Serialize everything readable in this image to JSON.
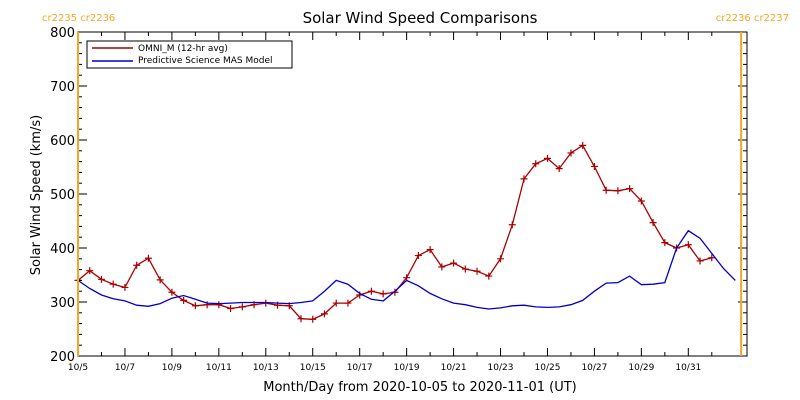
{
  "chart_data": {
    "type": "line",
    "title": "Solar Wind Speed Comparisons",
    "xlabel": "Month/Day from 2020-10-05 to 2020-11-01 (UT)",
    "ylabel": "Solar Wind Speed (km/s)",
    "ylim": [
      200,
      800
    ],
    "xlim": [
      "2020-10-05",
      "2020-11-02 12:00"
    ],
    "y_ticks": [
      "200",
      "300",
      "400",
      "500",
      "600",
      "700",
      "800"
    ],
    "x_ticks": [
      {
        "date": "2020-10-05",
        "label": "10/5"
      },
      {
        "date": "2020-10-07",
        "label": "10/7"
      },
      {
        "date": "2020-10-09",
        "label": "10/9"
      },
      {
        "date": "2020-10-11",
        "label": "10/11"
      },
      {
        "date": "2020-10-13",
        "label": "10/13"
      },
      {
        "date": "2020-10-15",
        "label": "10/15"
      },
      {
        "date": "2020-10-17",
        "label": "10/17"
      },
      {
        "date": "2020-10-19",
        "label": "10/19"
      },
      {
        "date": "2020-10-21",
        "label": "10/21"
      },
      {
        "date": "2020-10-23",
        "label": "10/23"
      },
      {
        "date": "2020-10-25",
        "label": "10/25"
      },
      {
        "date": "2020-10-27",
        "label": "10/27"
      },
      {
        "date": "2020-10-29",
        "label": "10/29"
      },
      {
        "date": "2020-10-31",
        "label": "10/31"
      }
    ],
    "grid": false,
    "legend_position": "top-left",
    "carrington_markers": [
      {
        "date": "2020-10-05",
        "label": "cr2235 cr2236",
        "label_align": "left"
      },
      {
        "date": "2020-11-02 06:00",
        "label": "cr2236 cr2237",
        "label_align": "right"
      }
    ],
    "colors": {
      "omni": "#aa0000",
      "model": "#0000cc",
      "marker": "#f5a623"
    },
    "series": [
      {
        "name": "OMNI_M (12-hr avg)",
        "color": "#aa0000",
        "marker": "+",
        "points": [
          [
            "2020-10-05 00:00",
            340
          ],
          [
            "2020-10-05 12:00",
            358
          ],
          [
            "2020-10-06 00:00",
            342
          ],
          [
            "2020-10-06 12:00",
            333
          ],
          [
            "2020-10-07 00:00",
            327
          ],
          [
            "2020-10-07 12:00",
            368
          ],
          [
            "2020-10-08 00:00",
            381
          ],
          [
            "2020-10-08 12:00",
            341
          ],
          [
            "2020-10-09 00:00",
            318
          ],
          [
            "2020-10-09 12:00",
            303
          ],
          [
            "2020-10-10 00:00",
            293
          ],
          [
            "2020-10-10 12:00",
            295
          ],
          [
            "2020-10-11 00:00",
            295
          ],
          [
            "2020-10-11 12:00",
            288
          ],
          [
            "2020-10-12 00:00",
            291
          ],
          [
            "2020-10-12 12:00",
            295
          ],
          [
            "2020-10-13 00:00",
            298
          ],
          [
            "2020-10-13 12:00",
            294
          ],
          [
            "2020-10-14 00:00",
            293
          ],
          [
            "2020-10-14 12:00",
            269
          ],
          [
            "2020-10-15 00:00",
            268
          ],
          [
            "2020-10-15 12:00",
            278
          ],
          [
            "2020-10-16 00:00",
            298
          ],
          [
            "2020-10-16 12:00",
            298
          ],
          [
            "2020-10-17 00:00",
            313
          ],
          [
            "2020-10-17 12:00",
            320
          ],
          [
            "2020-10-18 00:00",
            315
          ],
          [
            "2020-10-18 12:00",
            318
          ],
          [
            "2020-10-19 00:00",
            345
          ],
          [
            "2020-10-19 12:00",
            386
          ],
          [
            "2020-10-20 00:00",
            397
          ],
          [
            "2020-10-20 12:00",
            365
          ],
          [
            "2020-10-21 00:00",
            372
          ],
          [
            "2020-10-21 12:00",
            361
          ],
          [
            "2020-10-22 00:00",
            357
          ],
          [
            "2020-10-22 12:00",
            348
          ],
          [
            "2020-10-23 00:00",
            380
          ],
          [
            "2020-10-23 12:00",
            443
          ],
          [
            "2020-10-24 00:00",
            528
          ],
          [
            "2020-10-24 12:00",
            556
          ],
          [
            "2020-10-25 00:00",
            566
          ],
          [
            "2020-10-25 12:00",
            547
          ],
          [
            "2020-10-26 00:00",
            576
          ],
          [
            "2020-10-26 12:00",
            590
          ],
          [
            "2020-10-27 00:00",
            551
          ],
          [
            "2020-10-27 12:00",
            507
          ],
          [
            "2020-10-28 00:00",
            506
          ],
          [
            "2020-10-28 12:00",
            510
          ],
          [
            "2020-10-29 00:00",
            487
          ],
          [
            "2020-10-29 12:00",
            447
          ],
          [
            "2020-10-30 00:00",
            410
          ],
          [
            "2020-10-30 12:00",
            400
          ],
          [
            "2020-10-31 00:00",
            406
          ],
          [
            "2020-10-31 12:00",
            376
          ],
          [
            "2020-11-01 00:00",
            382
          ]
        ]
      },
      {
        "name": "Predictive Science MAS Model",
        "color": "#0000cc",
        "marker": "",
        "points": [
          [
            "2020-10-05 00:00",
            340
          ],
          [
            "2020-10-05 12:00",
            325
          ],
          [
            "2020-10-06 00:00",
            313
          ],
          [
            "2020-10-06 12:00",
            306
          ],
          [
            "2020-10-07 00:00",
            302
          ],
          [
            "2020-10-07 12:00",
            294
          ],
          [
            "2020-10-08 00:00",
            292
          ],
          [
            "2020-10-08 12:00",
            297
          ],
          [
            "2020-10-09 00:00",
            307
          ],
          [
            "2020-10-09 12:00",
            312
          ],
          [
            "2020-10-10 00:00",
            305
          ],
          [
            "2020-10-10 12:00",
            298
          ],
          [
            "2020-10-11 00:00",
            297
          ],
          [
            "2020-10-11 12:00",
            298
          ],
          [
            "2020-10-12 00:00",
            299
          ],
          [
            "2020-10-12 12:00",
            299
          ],
          [
            "2020-10-13 00:00",
            299
          ],
          [
            "2020-10-13 12:00",
            298
          ],
          [
            "2020-10-14 00:00",
            297
          ],
          [
            "2020-10-14 12:00",
            299
          ],
          [
            "2020-10-15 00:00",
            302
          ],
          [
            "2020-10-15 12:00",
            320
          ],
          [
            "2020-10-16 00:00",
            340
          ],
          [
            "2020-10-16 12:00",
            333
          ],
          [
            "2020-10-17 00:00",
            316
          ],
          [
            "2020-10-17 12:00",
            305
          ],
          [
            "2020-10-18 00:00",
            302
          ],
          [
            "2020-10-18 12:00",
            320
          ],
          [
            "2020-10-19 00:00",
            340
          ],
          [
            "2020-10-19 12:00",
            330
          ],
          [
            "2020-10-20 00:00",
            316
          ],
          [
            "2020-10-20 12:00",
            306
          ],
          [
            "2020-10-21 00:00",
            298
          ],
          [
            "2020-10-21 12:00",
            295
          ],
          [
            "2020-10-22 00:00",
            290
          ],
          [
            "2020-10-22 12:00",
            287
          ],
          [
            "2020-10-23 00:00",
            289
          ],
          [
            "2020-10-23 12:00",
            293
          ],
          [
            "2020-10-24 00:00",
            294
          ],
          [
            "2020-10-24 12:00",
            291
          ],
          [
            "2020-10-25 00:00",
            290
          ],
          [
            "2020-10-25 12:00",
            291
          ],
          [
            "2020-10-26 00:00",
            295
          ],
          [
            "2020-10-26 12:00",
            303
          ],
          [
            "2020-10-27 00:00",
            320
          ],
          [
            "2020-10-27 12:00",
            335
          ],
          [
            "2020-10-28 00:00",
            336
          ],
          [
            "2020-10-28 12:00",
            348
          ],
          [
            "2020-10-29 00:00",
            332
          ],
          [
            "2020-10-29 12:00",
            333
          ],
          [
            "2020-10-30 00:00",
            336
          ],
          [
            "2020-10-30 12:00",
            400
          ],
          [
            "2020-10-31 00:00",
            432
          ],
          [
            "2020-10-31 12:00",
            418
          ],
          [
            "2020-11-01 00:00",
            390
          ],
          [
            "2020-11-01 12:00",
            362
          ],
          [
            "2020-11-02 00:00",
            340
          ]
        ]
      }
    ]
  }
}
